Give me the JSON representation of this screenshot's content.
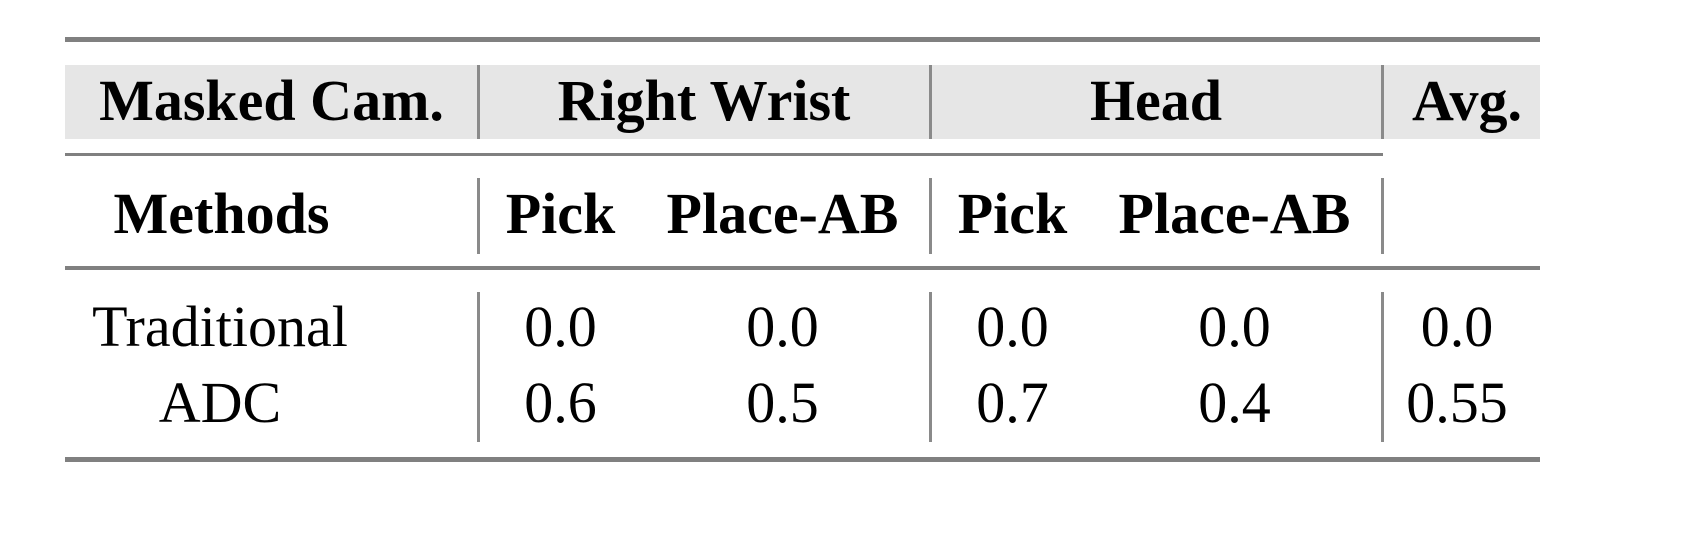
{
  "table": {
    "header_row1": [
      "Masked Cam.",
      "Right Wrist",
      "Head",
      "Avg."
    ],
    "header_row2": [
      "Methods",
      "Pick",
      "Place-AB",
      "Pick",
      "Place-AB"
    ],
    "rows": [
      {
        "method": "Traditional",
        "values": [
          "0.0",
          "0.0",
          "0.0",
          "0.0",
          "0.0"
        ]
      },
      {
        "method": "ADC",
        "values": [
          "0.6",
          "0.5",
          "0.7",
          "0.4",
          "0.55"
        ]
      }
    ],
    "header_bg_color": "#e6e6e6",
    "rule_color": "#808080"
  }
}
